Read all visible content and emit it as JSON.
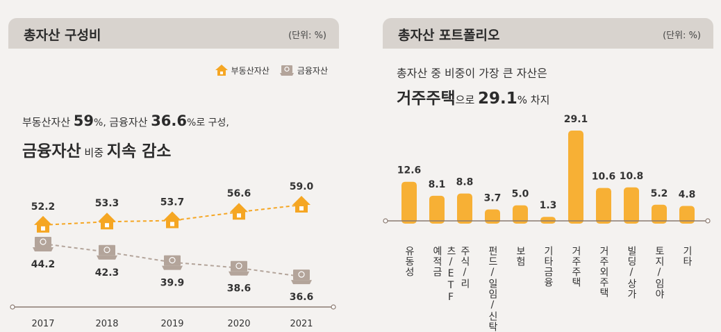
{
  "left_panel": {
    "title": "총자산 구성비",
    "unit": "(단위: %)",
    "legend": [
      "부동산자산",
      "금융자산"
    ],
    "headline": {
      "part1": "부동산자산 ",
      "v1": "59",
      "pct1": "%, ",
      "part2": "금융자산 ",
      "v2": "36.6",
      "pct2": "%로 구성,",
      "line2a": "금융자산",
      "line2b": " 비중 ",
      "line2c": "지속 감소"
    }
  },
  "right_panel": {
    "title": "총자산 포트폴리오",
    "unit": "(단위: %)",
    "headline": {
      "line1": "총자산 중 비중이 가장 큰 자산은",
      "bold": "거주주택",
      "part2": "으로 ",
      "value": "29.1",
      "pct": "%",
      "tail": " 차지"
    }
  },
  "colors": {
    "real_estate": "#f5a623",
    "financial": "#b3a49a",
    "bar": "#f7b035",
    "axis": "#8a7a70"
  },
  "chart_data": [
    {
      "type": "line",
      "title": "총자산 구성비",
      "x": [
        "2017",
        "2018",
        "2019",
        "2020",
        "2021"
      ],
      "series": [
        {
          "name": "부동산자산",
          "values": [
            52.2,
            53.3,
            53.7,
            56.6,
            59.0
          ],
          "labels": [
            "52.2",
            "53.3",
            "53.7",
            "56.6",
            "59.0"
          ]
        },
        {
          "name": "금융자산",
          "values": [
            44.2,
            42.3,
            39.9,
            38.6,
            36.6
          ],
          "labels": [
            "44.2",
            "42.3",
            "39.9",
            "38.6",
            "36.6"
          ]
        }
      ],
      "legend": "top-right"
    },
    {
      "type": "bar",
      "title": "총자산 포트폴리오",
      "categories": [
        "유동성",
        "예적금",
        "주식/리츠/ETF",
        "펀드/일임/신탁",
        "보험",
        "기타금융",
        "거주주택",
        "거주외주택",
        "빌딩/상가",
        "토지/임야",
        "기타"
      ],
      "values": [
        12.6,
        8.1,
        8.8,
        3.7,
        5.0,
        1.3,
        29.1,
        10.6,
        10.8,
        5.2,
        4.8
      ],
      "labels": [
        "12.6",
        "8.1",
        "8.8",
        "3.7",
        "5.0",
        "1.3",
        "29.1",
        "10.6",
        "10.8",
        "5.2",
        "4.8"
      ],
      "ylim": [
        0,
        29.1
      ]
    }
  ]
}
